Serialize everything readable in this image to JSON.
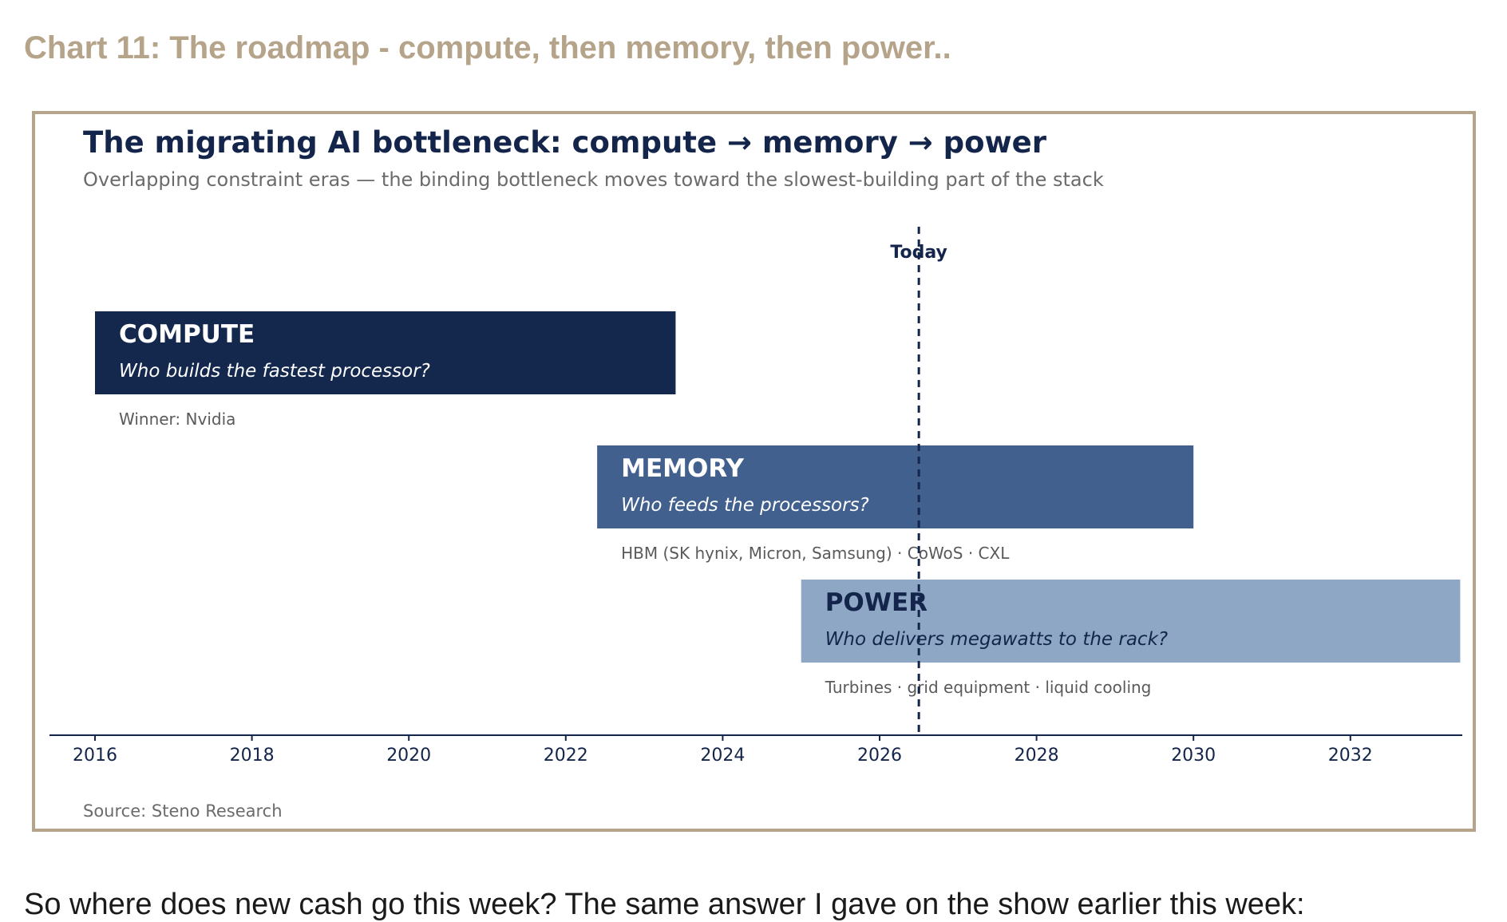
{
  "page": {
    "heading": "Chart 11: The roadmap - compute, then memory, then power..",
    "body_text": "So where does new cash go this week? The same answer I gave on the show earlier this week:"
  },
  "colors": {
    "heading": "#b5a48a",
    "frame": "#b5a48a",
    "title": "#13254a",
    "compute": "#13284c",
    "memory": "#41608e",
    "power": "#8ea7c5",
    "axis": "#13254a"
  },
  "chart_data": {
    "type": "timeline",
    "title": "The migrating AI bottleneck: compute → memory → power",
    "subtitle": "Overlapping constraint eras — the binding bottleneck moves toward the slowest-building part of the stack",
    "source": "Source: Steno Research",
    "x_ticks": [
      2016,
      2018,
      2020,
      2022,
      2024,
      2026,
      2028,
      2030,
      2032
    ],
    "xlim": [
      2015.4,
      2033.4
    ],
    "today": {
      "label": "Today",
      "year": 2026.5
    },
    "eras": [
      {
        "name": "COMPUTE",
        "question": "Who builds the fastest processor?",
        "note": "Winner: Nvidia",
        "start": 2016,
        "end": 2023.4,
        "color": "#13284c",
        "text_color": "#ffffff"
      },
      {
        "name": "MEMORY",
        "question": "Who feeds the processors?",
        "note": "HBM (SK hynix, Micron, Samsung) · CoWoS · CXL",
        "start": 2022.4,
        "end": 2030,
        "color": "#41608e",
        "text_color": "#ffffff"
      },
      {
        "name": "POWER",
        "question": "Who delivers megawatts to the rack?",
        "note": "Turbines · grid equipment · liquid cooling",
        "start": 2025,
        "end": 2033.4,
        "color": "#8ea7c5",
        "text_color": "#13254a"
      }
    ]
  }
}
